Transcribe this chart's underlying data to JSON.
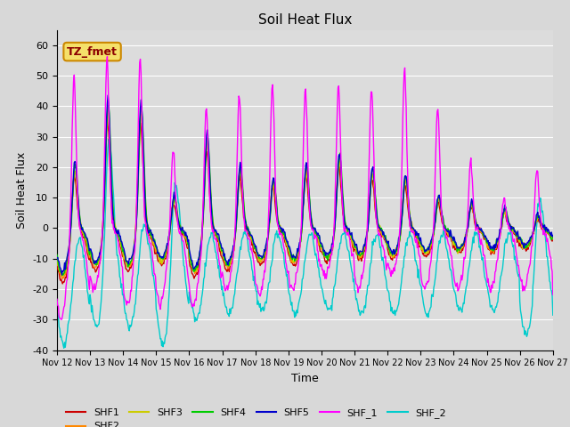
{
  "title": "Soil Heat Flux",
  "xlabel": "Time",
  "ylabel": "Soil Heat Flux",
  "xlim": [
    0,
    360
  ],
  "ylim": [
    -40,
    65
  ],
  "yticks": [
    -40,
    -30,
    -20,
    -10,
    0,
    10,
    20,
    30,
    40,
    50,
    60
  ],
  "xtick_labels": [
    "Nov 12",
    "Nov 13",
    "Nov 14",
    "Nov 15",
    "Nov 16",
    "Nov 17",
    "Nov 18",
    "Nov 19",
    "Nov 20",
    "Nov 21",
    "Nov 22",
    "Nov 23",
    "Nov 24",
    "Nov 25",
    "Nov 26",
    "Nov 27"
  ],
  "xtick_positions": [
    0,
    24,
    48,
    72,
    96,
    120,
    144,
    168,
    192,
    216,
    240,
    264,
    288,
    312,
    336,
    360
  ],
  "series": {
    "SHF1": {
      "color": "#cc0000"
    },
    "SHF2": {
      "color": "#ff8800"
    },
    "SHF3": {
      "color": "#cccc00"
    },
    "SHF4": {
      "color": "#00cc00"
    },
    "SHF5": {
      "color": "#0000cc"
    },
    "SHF_1": {
      "color": "#ff00ff"
    },
    "SHF_2": {
      "color": "#00cccc"
    }
  },
  "annotation_text": "TZ_fmet",
  "annotation_fg": "#8B0000",
  "annotation_bg": "#f5e06a",
  "annotation_edge": "#cc8800",
  "background_color": "#dcdcdc",
  "grid_color": "#ffffff",
  "fig_bg": "#d8d8d8"
}
